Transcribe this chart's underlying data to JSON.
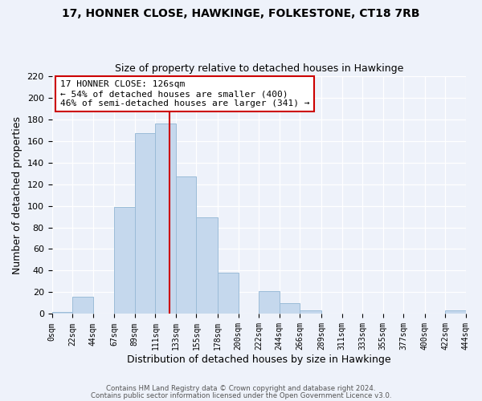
{
  "title": "17, HONNER CLOSE, HAWKINGE, FOLKESTONE, CT18 7RB",
  "subtitle": "Size of property relative to detached houses in Hawkinge",
  "xlabel": "Distribution of detached houses by size in Hawkinge",
  "ylabel": "Number of detached properties",
  "bar_color": "#c5d8ed",
  "bar_edge_color": "#9bbcd8",
  "vline_x": 126,
  "vline_color": "#cc0000",
  "annotation_title": "17 HONNER CLOSE: 126sqm",
  "annotation_line1": "← 54% of detached houses are smaller (400)",
  "annotation_line2": "46% of semi-detached houses are larger (341) →",
  "bin_edges": [
    0,
    22,
    44,
    67,
    89,
    111,
    133,
    155,
    178,
    200,
    222,
    244,
    266,
    289,
    311,
    333,
    355,
    377,
    400,
    422,
    444
  ],
  "bin_counts": [
    2,
    16,
    0,
    99,
    167,
    176,
    127,
    89,
    38,
    0,
    21,
    10,
    3,
    0,
    0,
    0,
    0,
    0,
    0,
    3
  ],
  "ylim": [
    0,
    220
  ],
  "yticks": [
    0,
    20,
    40,
    60,
    80,
    100,
    120,
    140,
    160,
    180,
    200,
    220
  ],
  "tick_labels": [
    "0sqm",
    "22sqm",
    "44sqm",
    "67sqm",
    "89sqm",
    "111sqm",
    "133sqm",
    "155sqm",
    "178sqm",
    "200sqm",
    "222sqm",
    "244sqm",
    "266sqm",
    "289sqm",
    "311sqm",
    "333sqm",
    "355sqm",
    "377sqm",
    "400sqm",
    "422sqm",
    "444sqm"
  ],
  "footer1": "Contains HM Land Registry data © Crown copyright and database right 2024.",
  "footer2": "Contains public sector information licensed under the Open Government Licence v3.0.",
  "background_color": "#eef2fa"
}
